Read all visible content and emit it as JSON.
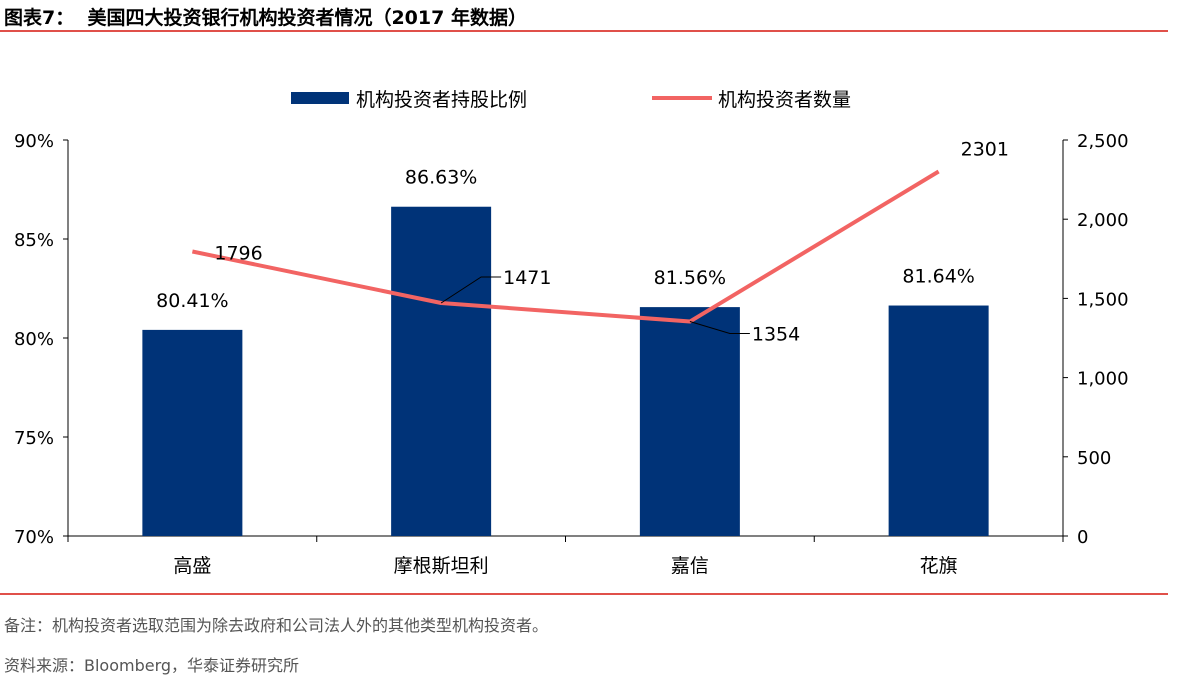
{
  "title": "图表7：  美国四大投资银行机构投资者情况（2017 年数据）",
  "note": "备注：机构投资者选取范围为除去政府和公司法人外的其他类型机构投资者。",
  "source": "资料来源：Bloomberg，华泰证券研究所",
  "colors": {
    "bar": "#003378",
    "line": "#f26463",
    "rule": "#e0504a"
  },
  "chart_data": {
    "type": "bar+line",
    "categories": [
      "高盛",
      "摩根斯坦利",
      "嘉信",
      "花旗"
    ],
    "series": [
      {
        "name": "机构投资者持股比例",
        "type": "bar",
        "axis": "left",
        "values": [
          80.41,
          86.63,
          81.56,
          81.64
        ],
        "labels": [
          "80.41%",
          "86.63%",
          "81.56%",
          "81.64%"
        ]
      },
      {
        "name": "机构投资者数量",
        "type": "line",
        "axis": "right",
        "values": [
          1796,
          1471,
          1354,
          2301
        ],
        "labels": [
          "1796",
          "1471",
          "1354",
          "2301"
        ]
      }
    ],
    "left_axis": {
      "ylim": [
        70,
        90
      ],
      "ticks": [
        "70%",
        "75%",
        "80%",
        "85%",
        "90%"
      ]
    },
    "right_axis": {
      "ylim": [
        0,
        2500
      ],
      "ticks": [
        "0",
        "500",
        "1,000",
        "1,500",
        "2,000",
        "2,500"
      ]
    },
    "legend": "top",
    "grid": false
  }
}
